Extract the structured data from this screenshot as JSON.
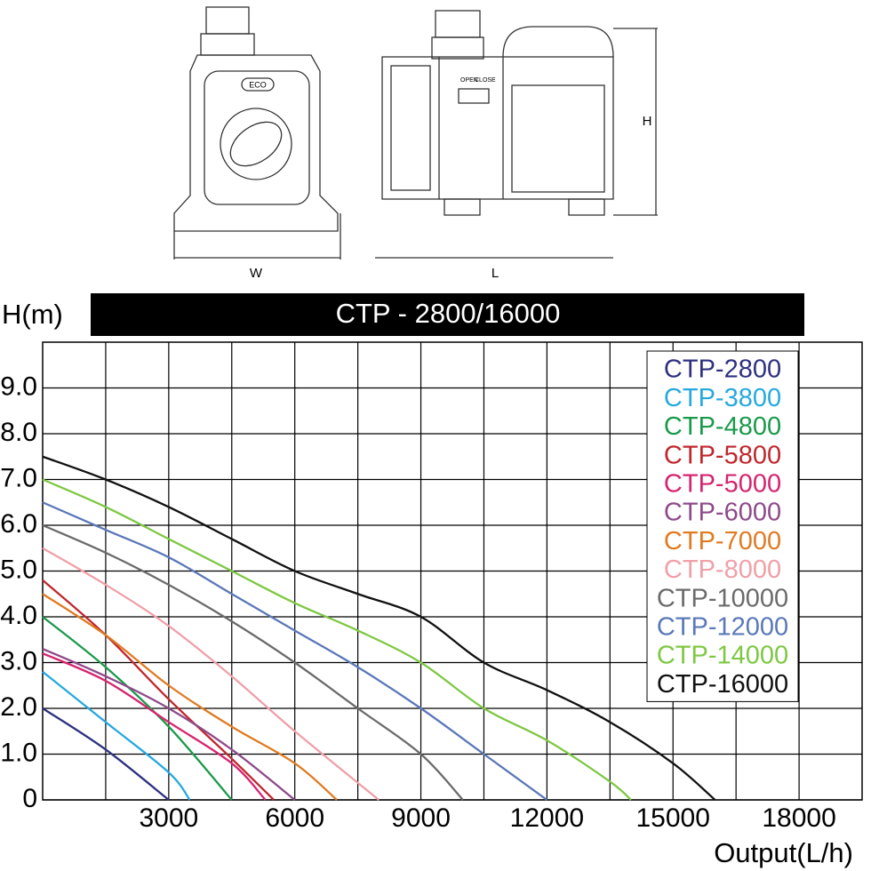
{
  "drawing": {
    "front_label": "W",
    "side_label": "L",
    "height_label": "H",
    "badge": "ECO",
    "switch_open": "OPEN",
    "switch_close": "CLOSE"
  },
  "chart_data": {
    "type": "line",
    "title": "CTP - 2800/16000",
    "y_label": "H(m)",
    "x_label": "Output(L/h)",
    "xlim": [
      0,
      19500
    ],
    "ylim": [
      0,
      10
    ],
    "xticks": [
      3000,
      6000,
      9000,
      12000,
      15000,
      18000
    ],
    "x_minor_grid": [
      1500,
      4500,
      7500,
      10500,
      13500,
      16500
    ],
    "yticks": [
      0,
      {
        "value": 1,
        "label": "1.0"
      },
      {
        "value": 2,
        "label": "2.0"
      },
      {
        "value": 3,
        "label": "3.0"
      },
      {
        "value": 4,
        "label": "4.0"
      },
      {
        "value": 5,
        "label": "5.0"
      },
      {
        "value": 6,
        "label": "6.0"
      },
      {
        "value": 7,
        "label": "7.0"
      },
      {
        "value": 8,
        "label": "8.0"
      },
      {
        "value": 9,
        "label": "9.0"
      }
    ],
    "grid": true,
    "legend": "top-right",
    "series": [
      {
        "name": "CTP-2800",
        "color": "#2e3180",
        "x": [
          0,
          1500,
          3000
        ],
        "values": [
          2.0,
          1.1,
          0
        ]
      },
      {
        "name": "CTP-3800",
        "color": "#27a9df",
        "x": [
          0,
          1500,
          3000,
          3500
        ],
        "values": [
          2.8,
          1.7,
          0.6,
          0
        ]
      },
      {
        "name": "CTP-4800",
        "color": "#1a9a4a",
        "x": [
          0,
          1500,
          3000,
          4500
        ],
        "values": [
          4.0,
          2.9,
          1.6,
          0
        ]
      },
      {
        "name": "CTP-5800",
        "color": "#c0272d",
        "x": [
          0,
          1500,
          3000,
          4500,
          5500
        ],
        "values": [
          4.8,
          3.6,
          2.2,
          0.9,
          0
        ]
      },
      {
        "name": "CTP-5000",
        "color": "#d6246e",
        "x": [
          0,
          1500,
          3000,
          4500,
          5300
        ],
        "values": [
          3.2,
          2.6,
          1.7,
          0.8,
          0
        ]
      },
      {
        "name": "CTP-6000",
        "color": "#8e4a8a",
        "x": [
          0,
          1500,
          3000,
          4500,
          6000
        ],
        "values": [
          3.3,
          2.7,
          2.0,
          1.1,
          0
        ]
      },
      {
        "name": "CTP-7000",
        "color": "#e07b22",
        "x": [
          0,
          1500,
          3000,
          4500,
          6000,
          7000
        ],
        "values": [
          4.5,
          3.6,
          2.5,
          1.6,
          0.8,
          0
        ]
      },
      {
        "name": "CTP-8000",
        "color": "#f0a0a8",
        "x": [
          0,
          1500,
          3000,
          4500,
          6000,
          8000
        ],
        "values": [
          5.5,
          4.7,
          3.8,
          2.7,
          1.5,
          0
        ]
      },
      {
        "name": "CTP-10000",
        "color": "#6b6b6b",
        "x": [
          0,
          1500,
          3000,
          4500,
          6000,
          7500,
          9000,
          10000
        ],
        "values": [
          6.0,
          5.4,
          4.7,
          3.9,
          3.0,
          2.0,
          1.0,
          0
        ]
      },
      {
        "name": "CTP-12000",
        "color": "#5b78b8",
        "x": [
          0,
          1500,
          3000,
          4500,
          6000,
          7500,
          9000,
          10500,
          12000
        ],
        "values": [
          6.5,
          5.9,
          5.3,
          4.5,
          3.7,
          2.9,
          2.0,
          1.0,
          0
        ]
      },
      {
        "name": "CTP-14000",
        "color": "#7ec843",
        "x": [
          0,
          1500,
          3000,
          4500,
          6000,
          7500,
          9000,
          10500,
          12000,
          13500,
          14000
        ],
        "values": [
          7.0,
          6.4,
          5.7,
          5.0,
          4.3,
          3.7,
          3.0,
          2.0,
          1.3,
          0.4,
          0
        ]
      },
      {
        "name": "CTP-16000",
        "color": "#111111",
        "x": [
          0,
          1500,
          3000,
          4500,
          6000,
          7500,
          9000,
          10500,
          12000,
          13500,
          15000,
          16000
        ],
        "values": [
          7.5,
          7.0,
          6.4,
          5.7,
          5.0,
          4.5,
          4.0,
          3.0,
          2.4,
          1.7,
          0.8,
          0
        ]
      }
    ]
  }
}
